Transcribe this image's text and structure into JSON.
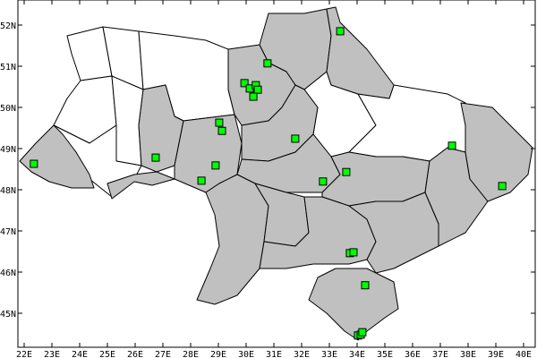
{
  "map": {
    "fill_colors": {
      "highlighted": "#c0c0c0",
      "other": "#ffffff",
      "station": "#00ff00"
    },
    "lon_ticks": [
      "22E",
      "23E",
      "24E",
      "25E",
      "26E",
      "27E",
      "28E",
      "29E",
      "30E",
      "31E",
      "32E",
      "33E",
      "34E",
      "35E",
      "36E",
      "37E",
      "38E",
      "39E",
      "40E"
    ],
    "lat_ticks": [
      "45N",
      "46N",
      "47N",
      "48N",
      "49N",
      "50N",
      "51N",
      "52N"
    ],
    "stations": [
      {
        "lon": 22.35,
        "lat": 48.63
      },
      {
        "lon": 26.74,
        "lat": 48.78
      },
      {
        "lon": 28.39,
        "lat": 48.22
      },
      {
        "lon": 28.9,
        "lat": 48.59
      },
      {
        "lon": 29.13,
        "lat": 49.43
      },
      {
        "lon": 29.03,
        "lat": 49.63
      },
      {
        "lon": 29.94,
        "lat": 50.59
      },
      {
        "lon": 30.13,
        "lat": 50.46
      },
      {
        "lon": 30.35,
        "lat": 50.54
      },
      {
        "lon": 30.42,
        "lat": 50.43
      },
      {
        "lon": 30.26,
        "lat": 50.26
      },
      {
        "lon": 30.77,
        "lat": 51.07
      },
      {
        "lon": 31.77,
        "lat": 49.24
      },
      {
        "lon": 32.77,
        "lat": 48.2
      },
      {
        "lon": 33.61,
        "lat": 48.43
      },
      {
        "lon": 33.39,
        "lat": 51.85
      },
      {
        "lon": 33.74,
        "lat": 46.46
      },
      {
        "lon": 33.87,
        "lat": 46.48
      },
      {
        "lon": 34.29,
        "lat": 45.68
      },
      {
        "lon": 34.03,
        "lat": 44.46
      },
      {
        "lon": 34.13,
        "lat": 44.48
      },
      {
        "lon": 34.19,
        "lat": 44.54
      },
      {
        "lon": 37.42,
        "lat": 49.07
      },
      {
        "lon": 39.23,
        "lat": 48.09
      }
    ]
  }
}
